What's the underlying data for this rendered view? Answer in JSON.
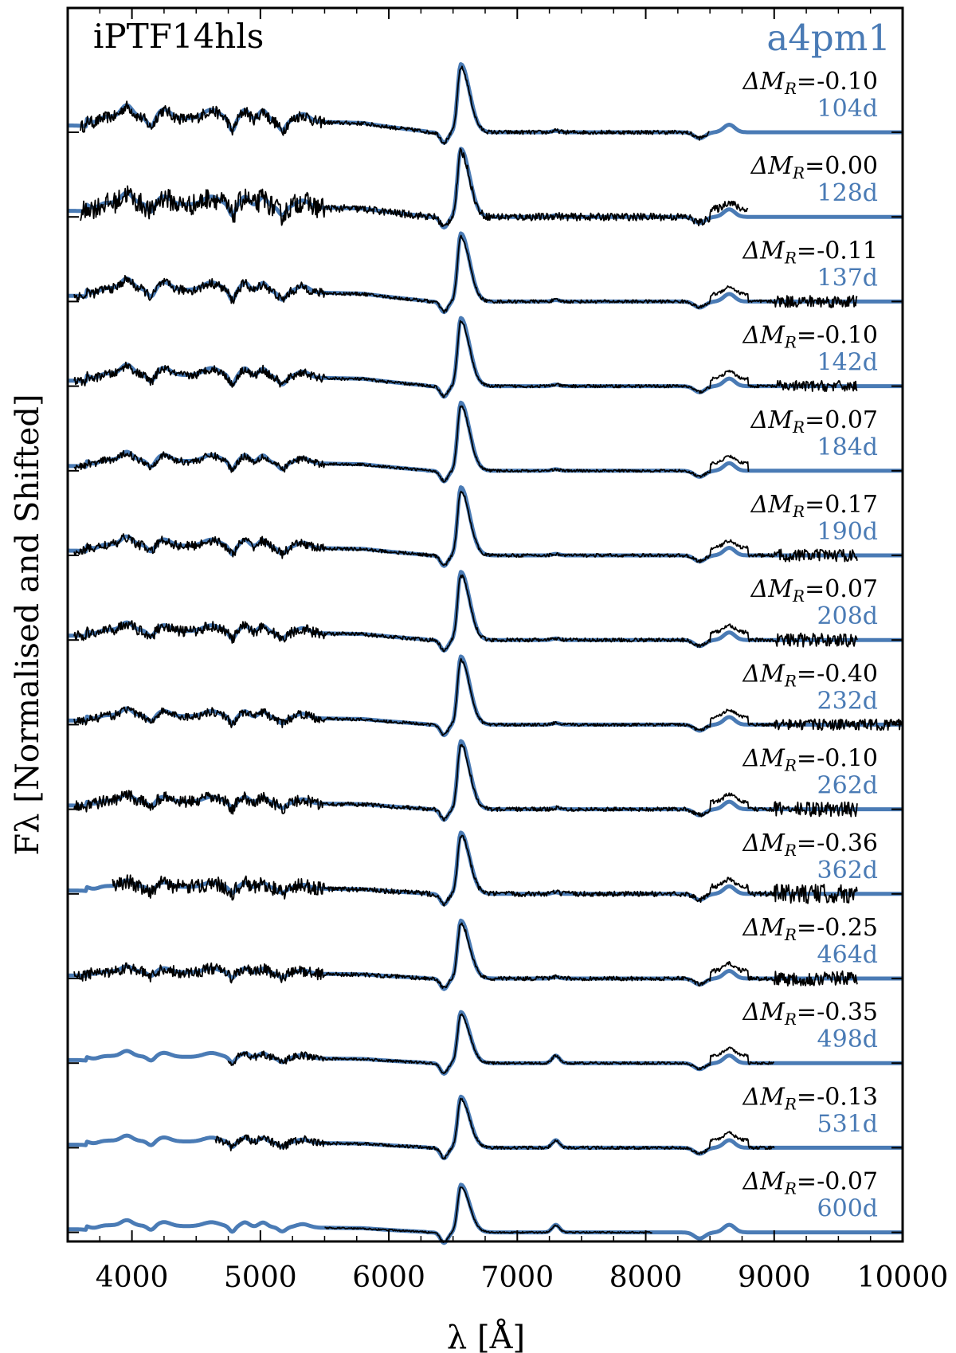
{
  "chart_data": {
    "type": "line",
    "title_left": "iPTF14hls",
    "title_right": "a4pm1",
    "xlabel": "λ [Å]",
    "ylabel": "Fλ [Normalised and Shifted]",
    "xlim": [
      3500,
      10000
    ],
    "xticks": [
      4000,
      5000,
      6000,
      7000,
      8000,
      9000,
      10000
    ],
    "xtick_labels": [
      "4000",
      "5000",
      "6000",
      "7000",
      "8000",
      "9000",
      "10000"
    ],
    "grid": false,
    "colors": {
      "model": "#4a7bb5",
      "observed": "#000000",
      "annotation_black": "#000000",
      "annotation_blue": "#4a7bb5"
    },
    "series_legend": [
      {
        "name": "iPTF14hls",
        "color": "#000000"
      },
      {
        "name": "a4pm1",
        "color": "#4a7bb5"
      }
    ],
    "spectra": [
      {
        "dMR": "-0.10",
        "epoch": "104d",
        "obs_range": [
          3600,
          8500
        ],
        "obs_noise": 0.55,
        "blue_amp": 1.0,
        "halpha": 1.0
      },
      {
        "dMR": "0.00",
        "epoch": "128d",
        "obs_range": [
          3600,
          8800
        ],
        "obs_noise": 1.0,
        "blue_amp": 0.9,
        "halpha": 1.0
      },
      {
        "dMR": "-0.11",
        "epoch": "137d",
        "obs_range": [
          3550,
          9650
        ],
        "obs_noise": 0.45,
        "blue_amp": 0.85,
        "halpha": 1.0
      },
      {
        "dMR": "-0.10",
        "epoch": "142d",
        "obs_range": [
          3550,
          9650
        ],
        "obs_noise": 0.4,
        "blue_amp": 0.8,
        "halpha": 1.0
      },
      {
        "dMR": "0.07",
        "epoch": "184d",
        "obs_range": [
          3550,
          8800
        ],
        "obs_noise": 0.35,
        "blue_amp": 0.7,
        "halpha": 1.0
      },
      {
        "dMR": "0.17",
        "epoch": "190d",
        "obs_range": [
          3550,
          9650
        ],
        "obs_noise": 0.45,
        "blue_amp": 0.7,
        "halpha": 1.0
      },
      {
        "dMR": "0.07",
        "epoch": "208d",
        "obs_range": [
          3550,
          9650
        ],
        "obs_noise": 0.5,
        "blue_amp": 0.65,
        "halpha": 1.0
      },
      {
        "dMR": "-0.40",
        "epoch": "232d",
        "obs_range": [
          3550,
          10000
        ],
        "obs_noise": 0.4,
        "blue_amp": 0.6,
        "halpha": 1.0
      },
      {
        "dMR": "-0.10",
        "epoch": "262d",
        "obs_range": [
          3550,
          9650
        ],
        "obs_noise": 0.55,
        "blue_amp": 0.55,
        "halpha": 1.0
      },
      {
        "dMR": "-0.36",
        "epoch": "362d",
        "obs_range": [
          3850,
          9650
        ],
        "obs_noise": 0.7,
        "blue_amp": 0.5,
        "halpha": 0.9
      },
      {
        "dMR": "-0.25",
        "epoch": "464d",
        "obs_range": [
          3550,
          9650
        ],
        "obs_noise": 0.55,
        "blue_amp": 0.45,
        "halpha": 0.85
      },
      {
        "dMR": "-0.35",
        "epoch": "498d",
        "obs_range": [
          4750,
          9000
        ],
        "obs_noise": 0.35,
        "blue_amp": 0.45,
        "halpha": 0.75
      },
      {
        "dMR": "-0.13",
        "epoch": "531d",
        "obs_range": [
          4650,
          9000
        ],
        "obs_noise": 0.4,
        "blue_amp": 0.45,
        "halpha": 0.75
      },
      {
        "dMR": "-0.07",
        "epoch": "600d",
        "obs_range": [
          5500,
          8050
        ],
        "obs_noise": 0.2,
        "blue_amp": 0.45,
        "halpha": 0.7
      }
    ]
  }
}
